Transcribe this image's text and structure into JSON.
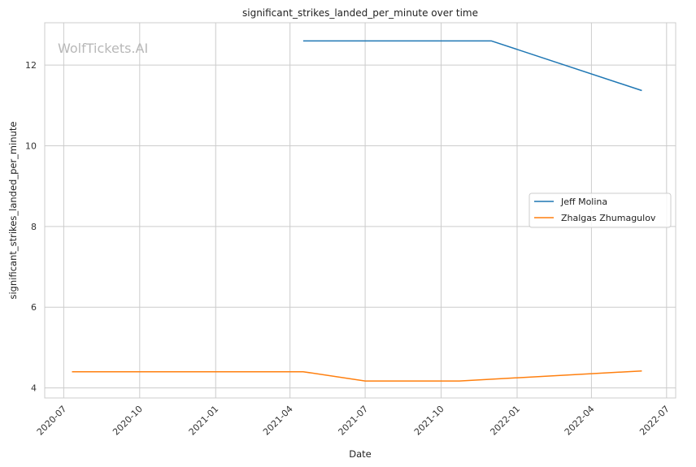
{
  "chart_data": {
    "type": "line",
    "title": "significant_strikes_landed_per_minute over time",
    "xlabel": "Date",
    "ylabel": "significant_strikes_landed_per_minute",
    "watermark": "WolfTickets.AI",
    "x_ticks": [
      "2020-07",
      "2020-10",
      "2021-01",
      "2021-04",
      "2021-07",
      "2021-10",
      "2022-01",
      "2022-04",
      "2022-07"
    ],
    "y_ticks": [
      4,
      6,
      8,
      10,
      12
    ],
    "xlim": [
      "2020-06-08",
      "2022-07-12"
    ],
    "ylim": [
      3.75,
      13.05
    ],
    "grid": true,
    "legend_position": "center-right",
    "series": [
      {
        "name": "Jeff Molina",
        "color": "#1f77b4",
        "points": [
          {
            "x": "2021-04-17",
            "y": 12.6
          },
          {
            "x": "2021-12-01",
            "y": 12.6
          },
          {
            "x": "2022-06-01",
            "y": 11.37
          }
        ]
      },
      {
        "name": "Zhalgas Zhumagulov",
        "color": "#ff7f0e",
        "points": [
          {
            "x": "2020-07-11",
            "y": 4.4
          },
          {
            "x": "2021-04-17",
            "y": 4.4
          },
          {
            "x": "2021-07-01",
            "y": 4.17
          },
          {
            "x": "2021-10-23",
            "y": 4.17
          },
          {
            "x": "2022-06-01",
            "y": 4.42
          }
        ]
      }
    ]
  }
}
